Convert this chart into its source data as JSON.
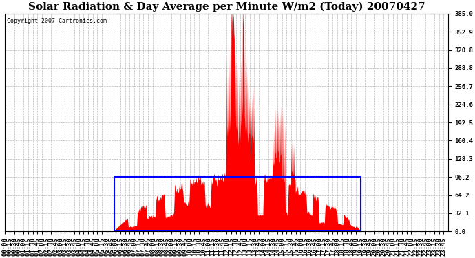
{
  "title": "Solar Radiation & Day Average per Minute W/m2 (Today) 20070427",
  "copyright": "Copyright 2007 Cartronics.com",
  "y_max": 385.0,
  "y_min": 0.0,
  "y_ticks": [
    0.0,
    32.1,
    64.2,
    96.2,
    128.3,
    160.4,
    192.5,
    224.6,
    256.7,
    288.8,
    320.8,
    352.9,
    385.0
  ],
  "day_average": 96.2,
  "background_color": "#ffffff",
  "fill_color": "#ff0000",
  "avg_rect_color": "#0000ff",
  "grid_color": "#b0b0b0",
  "title_fontsize": 11,
  "tick_fontsize": 6.5,
  "copyright_fontsize": 6
}
